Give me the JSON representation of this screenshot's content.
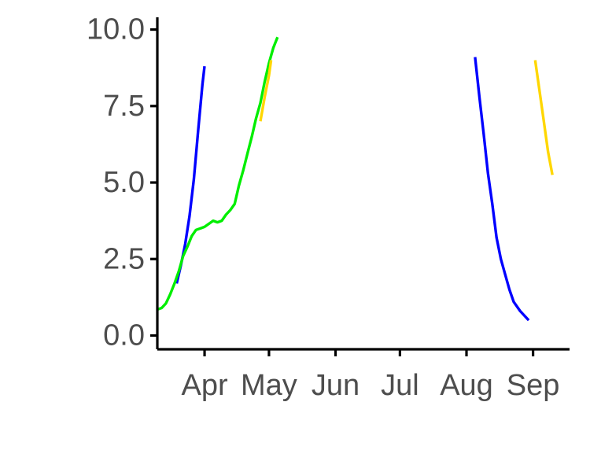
{
  "chart_data": {
    "type": "line",
    "title": "",
    "xlabel": "",
    "ylabel": "",
    "xlim": [
      "2021-03-10",
      "2021-09-18"
    ],
    "ylim": [
      -0.45,
      10.4
    ],
    "grid": false,
    "legend": "none",
    "x_ticks": [
      {
        "date": "2021-04-01",
        "label": "Apr"
      },
      {
        "date": "2021-05-01",
        "label": "May"
      },
      {
        "date": "2021-06-01",
        "label": "Jun"
      },
      {
        "date": "2021-07-01",
        "label": "Jul"
      },
      {
        "date": "2021-08-01",
        "label": "Aug"
      },
      {
        "date": "2021-09-01",
        "label": "Sep"
      }
    ],
    "y_ticks": [
      {
        "value": 0,
        "label": "0.0"
      },
      {
        "value": 2.5,
        "label": "2.5"
      },
      {
        "value": 5,
        "label": "5.0"
      },
      {
        "value": 7.5,
        "label": "7.5"
      },
      {
        "value": 10,
        "label": "10.0"
      }
    ],
    "series": [
      {
        "color": "#0000ff",
        "points": [
          [
            "2021-03-19",
            1.7
          ],
          [
            "2021-03-21",
            2.3
          ],
          [
            "2021-03-23",
            3.0
          ],
          [
            "2021-03-25",
            3.9
          ],
          [
            "2021-03-27",
            5.1
          ],
          [
            "2021-03-29",
            6.7
          ],
          [
            "2021-03-31",
            8.2
          ],
          [
            "2021-04-01",
            8.8
          ]
        ]
      },
      {
        "color": "#0000ff",
        "points": [
          [
            "2021-08-05",
            9.1
          ],
          [
            "2021-08-07",
            7.8
          ],
          [
            "2021-08-09",
            6.6
          ],
          [
            "2021-08-11",
            5.3
          ],
          [
            "2021-08-13",
            4.3
          ],
          [
            "2021-08-15",
            3.2
          ],
          [
            "2021-08-17",
            2.5
          ],
          [
            "2021-08-19",
            2.0
          ],
          [
            "2021-08-21",
            1.5
          ],
          [
            "2021-08-23",
            1.1
          ],
          [
            "2021-08-26",
            0.8
          ],
          [
            "2021-08-30",
            0.5
          ]
        ]
      },
      {
        "color": "#00ee00",
        "points": [
          [
            "2021-03-10",
            0.85
          ],
          [
            "2021-03-12",
            0.9
          ],
          [
            "2021-03-14",
            1.05
          ],
          [
            "2021-03-16",
            1.35
          ],
          [
            "2021-03-18",
            1.7
          ],
          [
            "2021-03-20",
            2.1
          ],
          [
            "2021-03-22",
            2.6
          ],
          [
            "2021-03-24",
            2.9
          ],
          [
            "2021-03-26",
            3.25
          ],
          [
            "2021-03-28",
            3.45
          ],
          [
            "2021-03-30",
            3.5
          ],
          [
            "2021-04-01",
            3.55
          ],
          [
            "2021-04-03",
            3.65
          ],
          [
            "2021-04-05",
            3.75
          ],
          [
            "2021-04-07",
            3.7
          ],
          [
            "2021-04-09",
            3.75
          ],
          [
            "2021-04-11",
            3.95
          ],
          [
            "2021-04-13",
            4.1
          ],
          [
            "2021-04-15",
            4.3
          ],
          [
            "2021-04-17",
            4.9
          ],
          [
            "2021-04-19",
            5.4
          ],
          [
            "2021-04-21",
            5.95
          ],
          [
            "2021-04-23",
            6.5
          ],
          [
            "2021-04-25",
            7.1
          ],
          [
            "2021-04-27",
            7.6
          ],
          [
            "2021-04-29",
            8.3
          ],
          [
            "2021-05-01",
            8.9
          ],
          [
            "2021-05-03",
            9.4
          ],
          [
            "2021-05-05",
            9.75
          ]
        ]
      },
      {
        "color": "#ffd700",
        "points": [
          [
            "2021-04-27",
            7.0
          ],
          [
            "2021-04-29",
            7.8
          ],
          [
            "2021-05-01",
            8.5
          ],
          [
            "2021-05-02",
            9.0
          ]
        ]
      },
      {
        "color": "#ffd700",
        "points": [
          [
            "2021-09-02",
            9.0
          ],
          [
            "2021-09-04",
            8.0
          ],
          [
            "2021-09-06",
            7.0
          ],
          [
            "2021-09-08",
            6.0
          ],
          [
            "2021-09-10",
            5.25
          ]
        ]
      }
    ]
  }
}
